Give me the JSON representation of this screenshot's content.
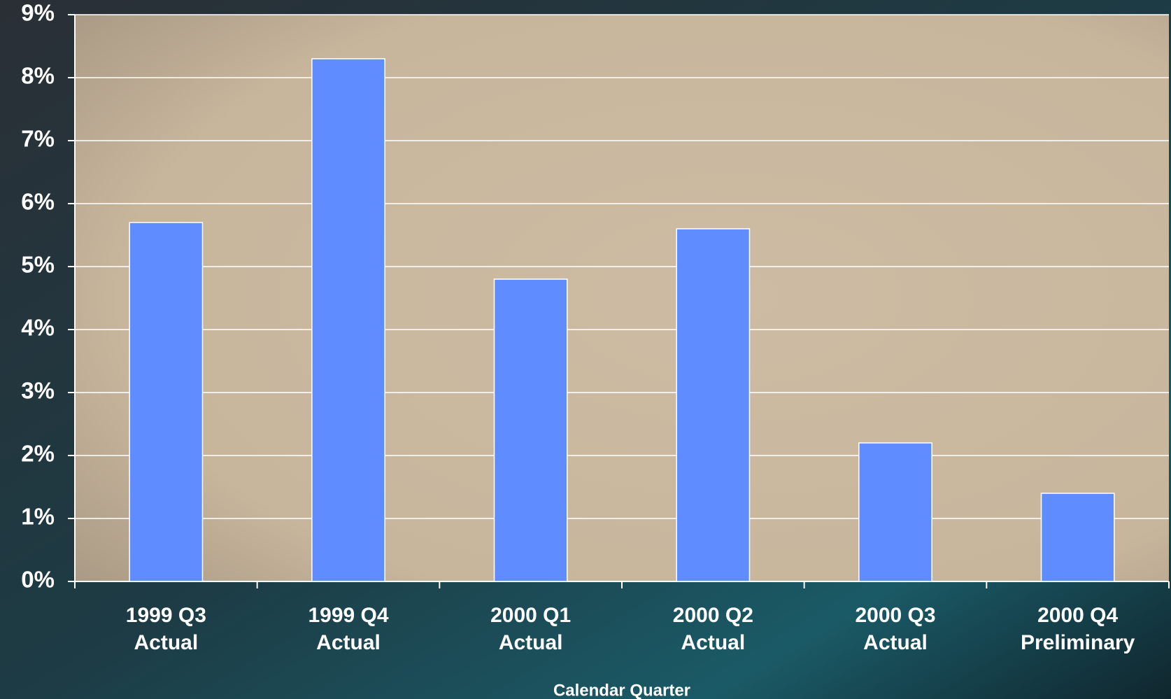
{
  "chart_data": {
    "type": "bar",
    "x_label": "Calendar Quarter",
    "categories": [
      [
        "1999 Q3",
        "Actual"
      ],
      [
        "1999 Q4",
        "Actual"
      ],
      [
        "2000 Q1",
        "Actual"
      ],
      [
        "2000 Q2",
        "Actual"
      ],
      [
        "2000 Q3",
        "Actual"
      ],
      [
        "2000 Q4",
        "Preliminary"
      ]
    ],
    "values": [
      5.7,
      8.3,
      4.8,
      5.6,
      2.2,
      1.4
    ],
    "color": "#5f8cff",
    "ylim": [
      0,
      9
    ],
    "yticks": [
      {
        "value": 0,
        "label": "0%"
      },
      {
        "value": 1,
        "label": "1%"
      },
      {
        "value": 2,
        "label": "2%"
      },
      {
        "value": 3,
        "label": "3%"
      },
      {
        "value": 4,
        "label": "4%"
      },
      {
        "value": 5,
        "label": "5%"
      },
      {
        "value": 6,
        "label": "6%"
      },
      {
        "value": 7,
        "label": "7%"
      },
      {
        "value": 8,
        "label": "8%"
      },
      {
        "value": 9,
        "label": "9%"
      }
    ],
    "grid": true
  }
}
